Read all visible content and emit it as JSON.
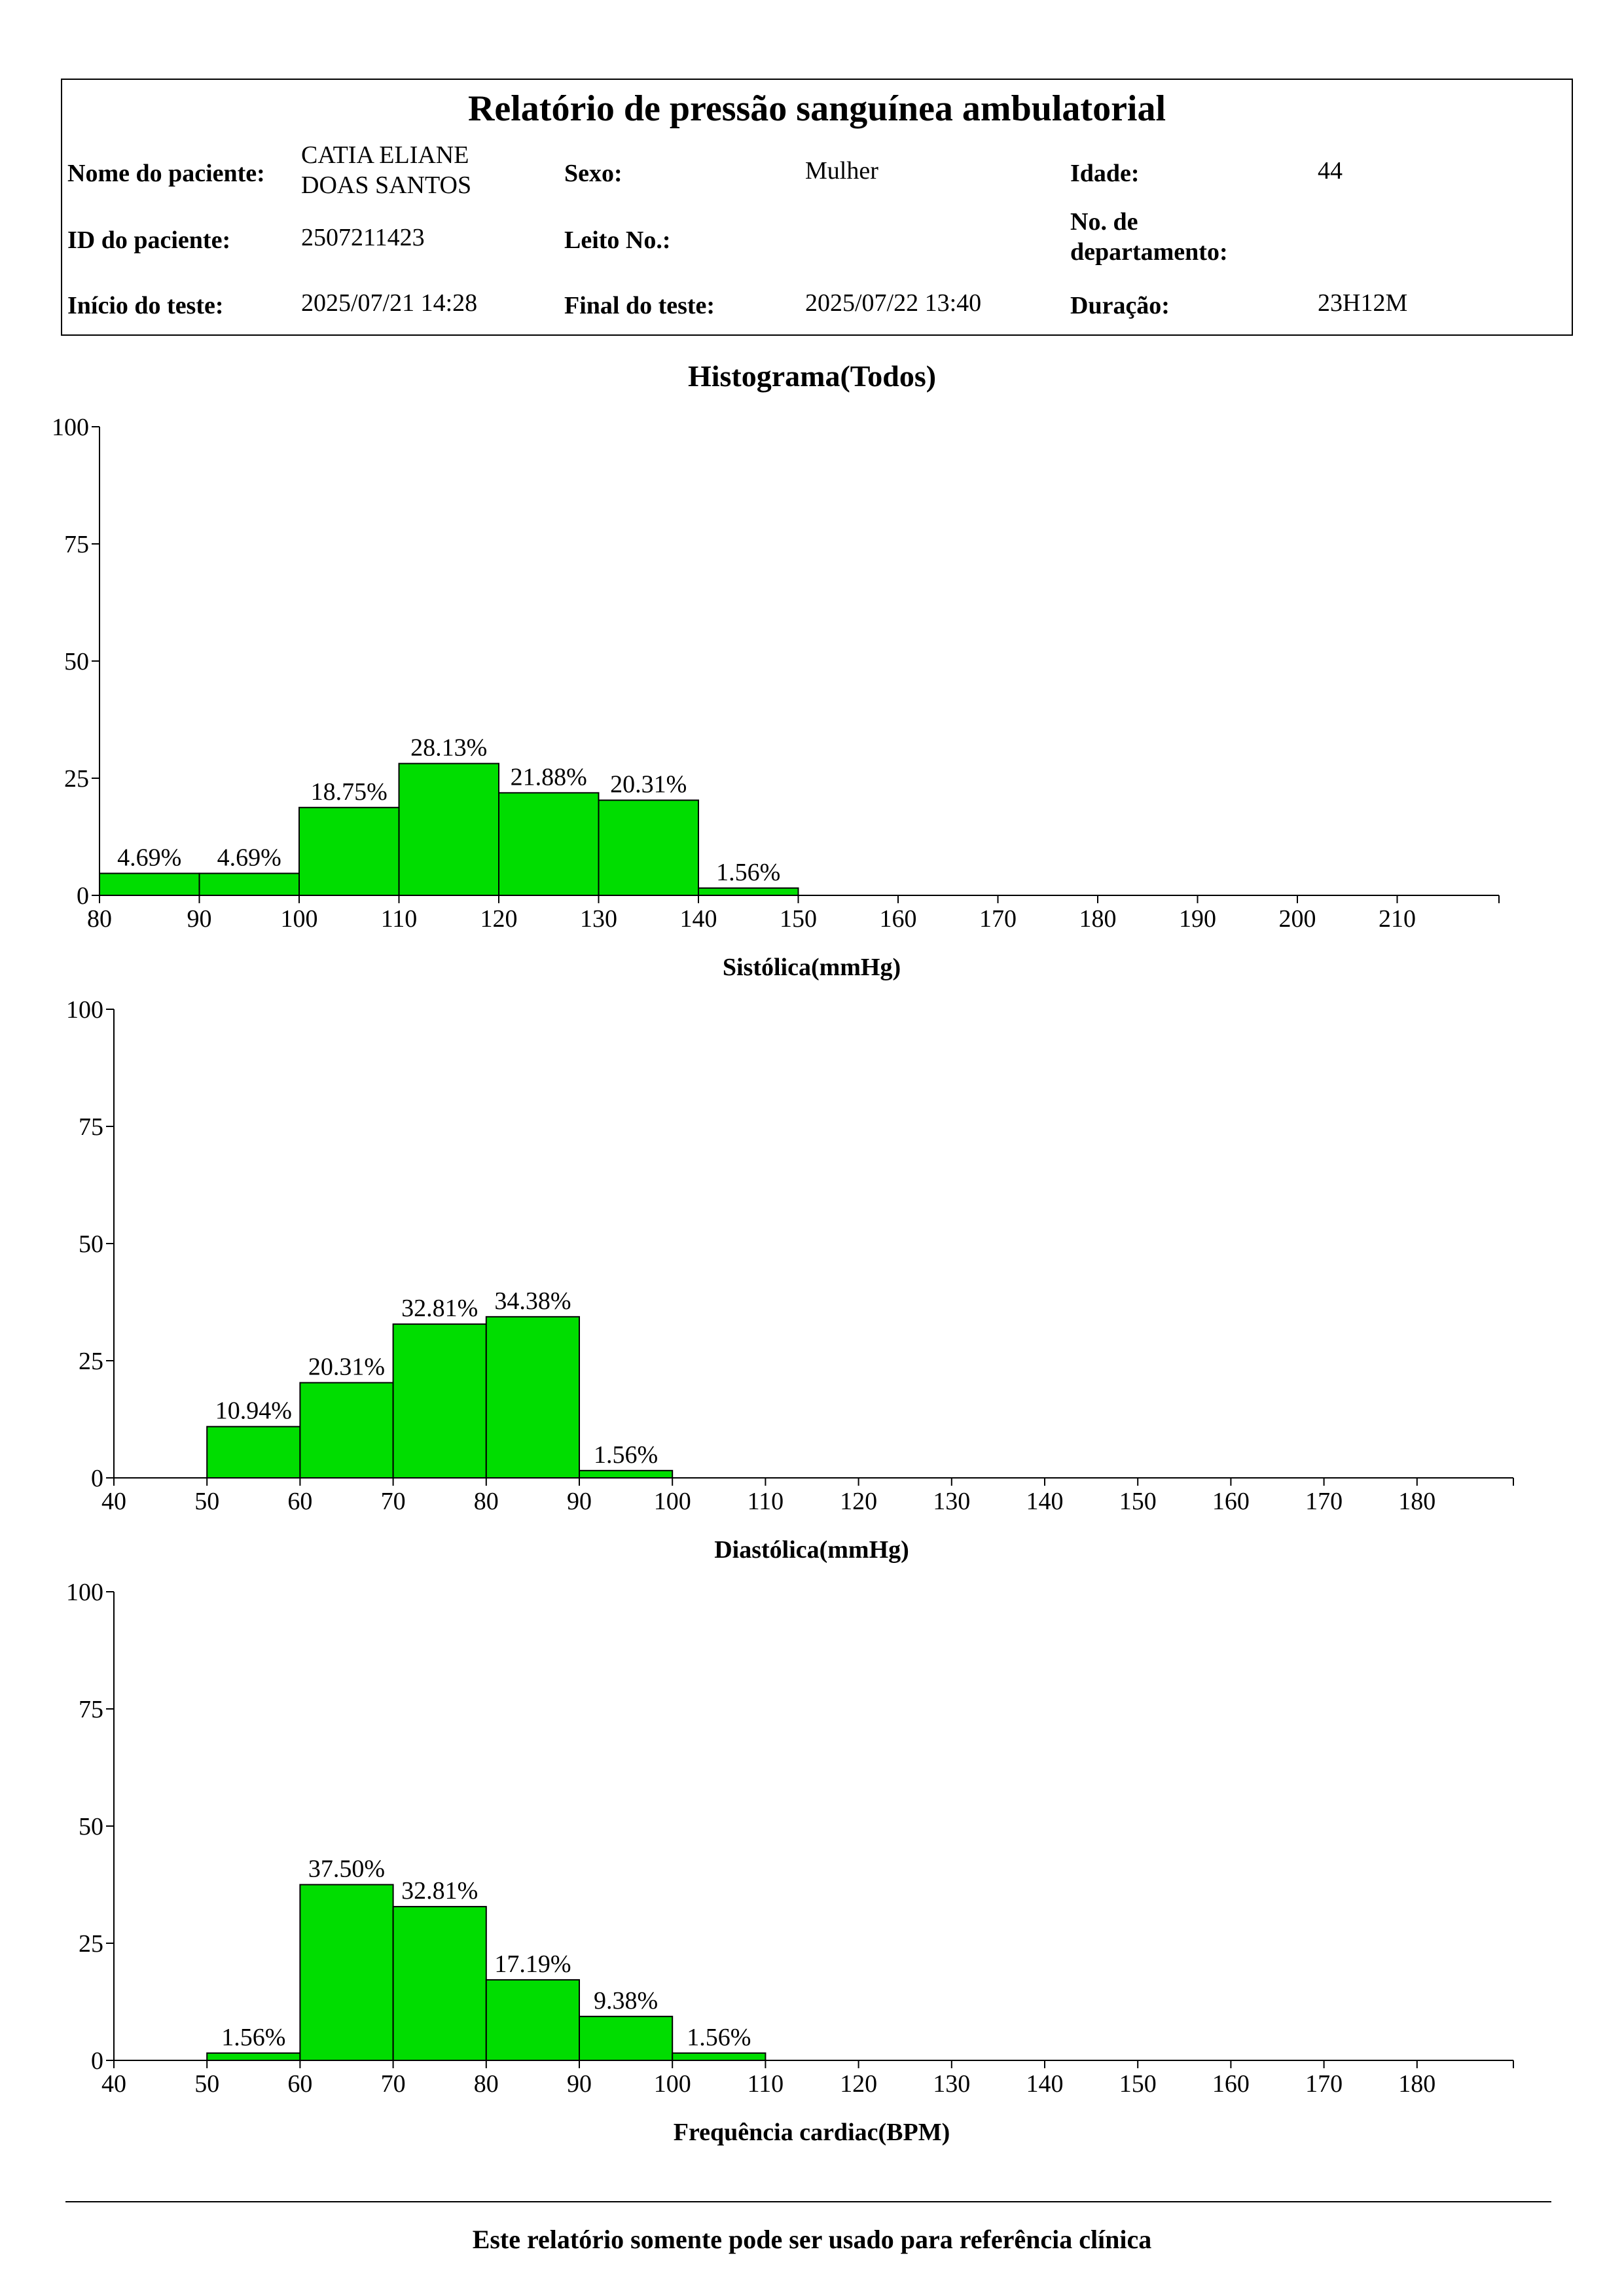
{
  "report": {
    "title": "Relatório de pressão sanguínea ambulatorial",
    "patient_name_label": "Nome do paciente:",
    "patient_name_line1": "CATIA ELIANE",
    "patient_name_line2": "DOAS SANTOS",
    "sex_label": "Sexo:",
    "sex_value": "Mulher",
    "age_label": "Idade:",
    "age_value": "44",
    "patient_id_label": "ID do paciente:",
    "patient_id_value": "2507211423",
    "bed_label": "Leito No.:",
    "bed_value": "",
    "department_label_line1": "No. de",
    "department_label_line2": "departamento:",
    "department_value": "",
    "start_label": "Início do teste:",
    "start_value": "2025/07/21 14:28",
    "end_label": "Final do teste:",
    "end_value": "2025/07/22 13:40",
    "duration_label": "Duração:",
    "duration_value": "23H12M"
  },
  "histogram_title": "Histograma(Todos)",
  "footer_note": "Este relatório somente pode ser usado para referência clínica",
  "colors": {
    "bar_fill": "#00dd00",
    "bar_stroke": "#000000"
  },
  "chart_data": [
    {
      "type": "bar",
      "xlabel": "Sistólica(mmHg)",
      "ylabel": "",
      "ylim": [
        0,
        100
      ],
      "yticks": [
        0,
        25,
        50,
        75,
        100
      ],
      "xlim": [
        80,
        220
      ],
      "xticks": [
        80,
        90,
        100,
        110,
        120,
        130,
        140,
        150,
        160,
        170,
        180,
        190,
        200,
        210
      ],
      "bins": [
        {
          "from": 80,
          "to": 90,
          "value": 4.69,
          "label": "4.69%"
        },
        {
          "from": 90,
          "to": 100,
          "value": 4.69,
          "label": "4.69%"
        },
        {
          "from": 100,
          "to": 110,
          "value": 18.75,
          "label": "18.75%"
        },
        {
          "from": 110,
          "to": 120,
          "value": 28.13,
          "label": "28.13%"
        },
        {
          "from": 120,
          "to": 130,
          "value": 21.88,
          "label": "21.88%"
        },
        {
          "from": 130,
          "to": 140,
          "value": 20.31,
          "label": "20.31%"
        },
        {
          "from": 140,
          "to": 150,
          "value": 1.56,
          "label": "1.56%"
        }
      ]
    },
    {
      "type": "bar",
      "xlabel": "Diastólica(mmHg)",
      "ylabel": "",
      "ylim": [
        0,
        100
      ],
      "yticks": [
        0,
        25,
        50,
        75,
        100
      ],
      "xlim": [
        40,
        190
      ],
      "xticks": [
        40,
        50,
        60,
        70,
        80,
        90,
        100,
        110,
        120,
        130,
        140,
        150,
        160,
        170,
        180
      ],
      "bins": [
        {
          "from": 50,
          "to": 60,
          "value": 10.94,
          "label": "10.94%"
        },
        {
          "from": 60,
          "to": 70,
          "value": 20.31,
          "label": "20.31%"
        },
        {
          "from": 70,
          "to": 80,
          "value": 32.81,
          "label": "32.81%"
        },
        {
          "from": 80,
          "to": 90,
          "value": 34.38,
          "label": "34.38%"
        },
        {
          "from": 90,
          "to": 100,
          "value": 1.56,
          "label": "1.56%"
        }
      ]
    },
    {
      "type": "bar",
      "xlabel": "Frequência cardiac(BPM)",
      "ylabel": "",
      "ylim": [
        0,
        100
      ],
      "yticks": [
        0,
        25,
        50,
        75,
        100
      ],
      "xlim": [
        40,
        190
      ],
      "xticks": [
        40,
        50,
        60,
        70,
        80,
        90,
        100,
        110,
        120,
        130,
        140,
        150,
        160,
        170,
        180
      ],
      "bins": [
        {
          "from": 50,
          "to": 60,
          "value": 1.56,
          "label": "1.56%"
        },
        {
          "from": 60,
          "to": 70,
          "value": 37.5,
          "label": "37.50%"
        },
        {
          "from": 70,
          "to": 80,
          "value": 32.81,
          "label": "32.81%"
        },
        {
          "from": 80,
          "to": 90,
          "value": 17.19,
          "label": "17.19%"
        },
        {
          "from": 90,
          "to": 100,
          "value": 9.38,
          "label": "9.38%"
        },
        {
          "from": 100,
          "to": 110,
          "value": 1.56,
          "label": "1.56%"
        }
      ]
    }
  ]
}
